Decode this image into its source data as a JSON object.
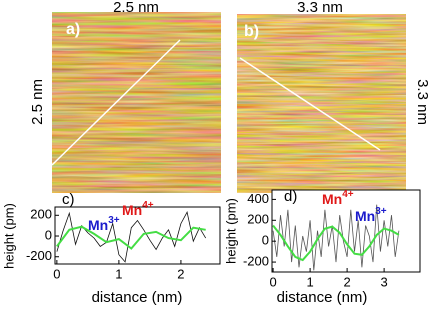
{
  "panels": [
    {
      "label": "a)",
      "top_label": "2.5 nm",
      "side_label": "2.5 nm"
    },
    {
      "label": "b)",
      "top_label": "3.3 nm",
      "side_label": "3.3 nm"
    }
  ],
  "chart_data": [
    {
      "type": "line",
      "label": "c)",
      "x_label": "distance (nm)",
      "y_label": "height (pm)",
      "xlim": [
        -0.03,
        2.63
      ],
      "ylim": [
        -270,
        280
      ],
      "xticks": [
        0,
        1,
        2
      ],
      "yticks": [
        200,
        0,
        -200
      ],
      "annotations": [
        {
          "text": "Mn",
          "sup": "3+",
          "color": "#1a1acc"
        },
        {
          "text": "Mn",
          "sup": "4+",
          "color": "#e01818"
        }
      ],
      "series": [
        {
          "color": "#111111",
          "x": [
            0,
            0.1,
            0.2,
            0.3,
            0.4,
            0.5,
            0.6,
            0.7,
            0.8,
            0.9,
            1.0,
            1.1,
            1.2,
            1.3,
            1.4,
            1.5,
            1.6,
            1.7,
            1.8,
            1.9,
            2.0,
            2.1,
            2.2,
            2.3,
            2.4
          ],
          "values": [
            -150,
            50,
            220,
            -80,
            100,
            30,
            -20,
            -100,
            -60,
            120,
            -180,
            -250,
            80,
            150,
            60,
            -40,
            -130,
            -20,
            60,
            -100,
            120,
            230,
            -50,
            80,
            -20
          ]
        },
        {
          "color": "#44dd44",
          "x": [
            0,
            0.2,
            0.4,
            0.6,
            0.8,
            1.0,
            1.2,
            1.4,
            1.6,
            1.8,
            2.0,
            2.2,
            2.4
          ],
          "values": [
            -100,
            60,
            90,
            20,
            -60,
            -30,
            -120,
            20,
            40,
            -20,
            -40,
            80,
            60
          ]
        }
      ]
    },
    {
      "type": "line",
      "label": "d)",
      "x_label": "distance (nm)",
      "y_label": "height (pm)",
      "xlim": [
        -0.03,
        3.97
      ],
      "ylim": [
        -295,
        490
      ],
      "xticks": [
        0,
        1,
        2,
        3
      ],
      "yticks": [
        400,
        200,
        0,
        -200
      ],
      "annotations": [
        {
          "text": "Mn",
          "sup": "4+",
          "color": "#e01818"
        },
        {
          "text": "Mn",
          "sup": "3+",
          "color": "#1a1acc"
        }
      ],
      "series": [
        {
          "color": "#555555",
          "x": [
            0,
            0.1,
            0.2,
            0.3,
            0.4,
            0.5,
            0.6,
            0.7,
            0.8,
            0.9,
            1.0,
            1.1,
            1.2,
            1.3,
            1.4,
            1.5,
            1.6,
            1.7,
            1.8,
            1.9,
            2.0,
            2.1,
            2.2,
            2.3,
            2.4,
            2.5,
            2.6,
            2.7,
            2.8,
            2.9,
            3.0,
            3.1,
            3.2,
            3.3,
            3.4
          ],
          "values": [
            100,
            -150,
            250,
            -50,
            300,
            -200,
            150,
            -250,
            50,
            -100,
            200,
            -280,
            100,
            -150,
            300,
            -50,
            150,
            -200,
            250,
            0,
            -150,
            300,
            -100,
            200,
            -250,
            150,
            50,
            -200,
            350,
            -100,
            200,
            -50,
            250,
            -150,
            100
          ]
        },
        {
          "color": "#44dd44",
          "x": [
            0,
            0.2,
            0.4,
            0.6,
            0.8,
            1.0,
            1.2,
            1.4,
            1.6,
            1.8,
            2.0,
            2.2,
            2.4,
            2.6,
            2.8,
            3.0,
            3.2,
            3.4
          ],
          "values": [
            150,
            60,
            -50,
            -150,
            -180,
            -100,
            20,
            120,
            140,
            80,
            -30,
            -120,
            -130,
            -50,
            60,
            120,
            100,
            60
          ]
        }
      ]
    }
  ]
}
